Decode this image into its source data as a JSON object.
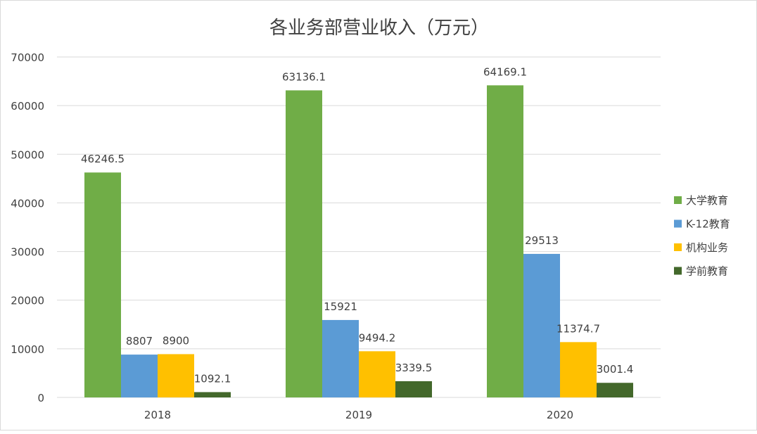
{
  "chart_data": {
    "type": "bar",
    "title": "各业务部营业收入（万元）",
    "categories": [
      "2018",
      "2019",
      "2020"
    ],
    "series": [
      {
        "name": "大学教育",
        "color": "#70ad47",
        "values": [
          46246.5,
          63136.1,
          64169.1
        ],
        "labels": [
          "46246.5",
          "63136.1",
          "64169.1"
        ]
      },
      {
        "name": "K-12教育",
        "color": "#5b9bd5",
        "values": [
          8807,
          15921,
          29513
        ],
        "labels": [
          "8807",
          "15921",
          "29513"
        ]
      },
      {
        "name": "机构业务",
        "color": "#ffc000",
        "values": [
          8900,
          9494.2,
          11374.7
        ],
        "labels": [
          "8900",
          "9494.2",
          "11374.7"
        ]
      },
      {
        "name": "学前教育",
        "color": "#43682b",
        "values": [
          1092.1,
          3339.5,
          3001.4
        ],
        "labels": [
          "1092.1",
          "3339.5",
          "3001.4"
        ]
      }
    ],
    "ylim": [
      0,
      70000
    ],
    "yticks": [
      "0",
      "10000",
      "20000",
      "30000",
      "40000",
      "50000",
      "60000",
      "70000"
    ],
    "grid": true,
    "legend": "right"
  }
}
